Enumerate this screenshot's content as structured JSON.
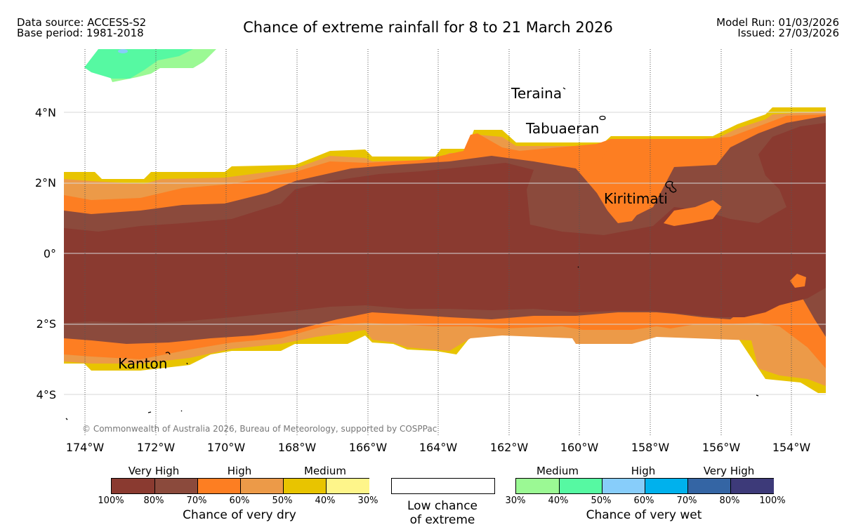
{
  "header": {
    "data_source": "Data source: ACCESS-S2",
    "base_period": "Base period: 1981-2018",
    "title": "Chance of extreme rainfall for 8 to 21 March 2026",
    "model_run": "Model Run: 01/03/2026",
    "issued": "Issued: 27/03/2026"
  },
  "axes": {
    "lat_labels": [
      "4°N",
      "2°N",
      "0°",
      "2°S",
      "4°S"
    ],
    "lon_labels": [
      "174°W",
      "172°W",
      "170°W",
      "168°W",
      "166°W",
      "164°W",
      "162°W",
      "160°W",
      "158°W",
      "156°W",
      "154°W"
    ]
  },
  "places": {
    "teraina": "Teraina",
    "tabuaeran": "Tabuaeran",
    "kiritimati": "Kiritimati",
    "kanton": "Kanton"
  },
  "copyright": "© Commonwealth of Australia 2026, Bureau of Meteorology, supported by COSPPac",
  "legend": {
    "dry": {
      "class_labels": [
        "Very High",
        "High",
        "Medium"
      ],
      "ticks": [
        "100%",
        "80%",
        "70%",
        "60%",
        "50%",
        "40%",
        "30%"
      ],
      "colors": [
        "#8a3a30",
        "#8b4a3c",
        "#fd7e22",
        "#ec9a48",
        "#e8c400",
        "#fef58a"
      ],
      "caption": "Chance of very dry"
    },
    "low": {
      "line1": "Low chance",
      "line2": "of extreme"
    },
    "wet": {
      "class_labels": [
        "Medium",
        "High",
        "Very High"
      ],
      "ticks": [
        "30%",
        "40%",
        "50%",
        "60%",
        "70%",
        "80%",
        "100%"
      ],
      "colors": [
        "#9bf994",
        "#56f9a2",
        "#87cdfa",
        "#00b1ed",
        "#3465a4",
        "#3d3a79"
      ],
      "caption": "Chance of very wet"
    }
  }
}
